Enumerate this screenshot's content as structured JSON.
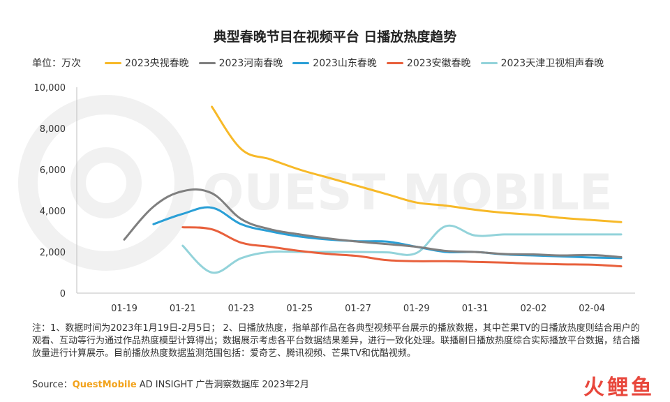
{
  "unit_label": "单位：万次",
  "watermark_text": "QUEST MOBILE",
  "note_text": "注：1、数据时间为2023年1月19日-2月5日；  2、日播放热度，指单部作品在各典型视频平台展示的播放数据，其中芒果TV的日播放热度则结合用户的观看、互动等行为通过作品热度模型计算得出；数据展示考虑各平台数据结果差异，进行一致化处理。联播剧日播放热度综合实际播放平台数据，结合播放量进行计算展示。目前播放热度数据监测范围包括：爱奇艺、腾讯视频、芒果TV和优酷视频。",
  "source_prefix": "Source：",
  "source_brand": "QuestMobile",
  "source_rest": " AD INSIGHT 广告洞察数据库 2023年2月",
  "logo_text": "火鲤鱼",
  "chart_data": {
    "type": "line",
    "title": "典型春晚节目在视频平台 日播放热度趋势",
    "ylabel": "单位：万次",
    "ylim": [
      0,
      10000
    ],
    "yticks": [
      "0",
      "2,000",
      "4,000",
      "6,000",
      "8,000",
      "10,000"
    ],
    "ytick_values": [
      0,
      2000,
      4000,
      6000,
      8000,
      10000
    ],
    "x_tick_labels": [
      "01-19",
      "01-21",
      "01-23",
      "01-25",
      "01-27",
      "01-29",
      "01-31",
      "02-02",
      "02-04"
    ],
    "x_tick_index": [
      0,
      2,
      4,
      6,
      8,
      10,
      12,
      14,
      16
    ],
    "x": [
      "01-19",
      "01-20",
      "01-21",
      "01-22",
      "01-23",
      "01-24",
      "01-25",
      "01-26",
      "01-27",
      "01-28",
      "01-29",
      "01-30",
      "01-31",
      "02-01",
      "02-02",
      "02-03",
      "02-04",
      "02-05"
    ],
    "grid": false,
    "legend_position": "top",
    "series": [
      {
        "name": "2023央视春晚",
        "color": "#f7b928",
        "values": [
          null,
          null,
          null,
          9050,
          7000,
          6500,
          6000,
          5600,
          5200,
          4800,
          4400,
          4250,
          4050,
          3900,
          3800,
          3650,
          3550,
          3450
        ]
      },
      {
        "name": "2023河南春晚",
        "color": "#7f7f7f",
        "values": [
          2600,
          4200,
          4950,
          4850,
          3600,
          3100,
          2850,
          2650,
          2500,
          2380,
          2250,
          2050,
          2000,
          1900,
          1880,
          1830,
          1850,
          1750
        ]
      },
      {
        "name": "2023山东春晚",
        "color": "#2a9fd6",
        "values": [
          null,
          3350,
          3850,
          4150,
          3350,
          3000,
          2750,
          2600,
          2520,
          2500,
          2250,
          2000,
          2000,
          1880,
          1830,
          1780,
          1730,
          1700
        ]
      },
      {
        "name": "2023安徽春晚",
        "color": "#e8603c",
        "values": [
          null,
          null,
          3200,
          3100,
          2450,
          2250,
          2050,
          1900,
          1800,
          1600,
          1550,
          1550,
          1520,
          1480,
          1430,
          1400,
          1380,
          1300
        ]
      },
      {
        "name": "2023天津卫视相声春晚",
        "color": "#93d3da",
        "values": [
          null,
          null,
          2300,
          1000,
          1700,
          2000,
          2000,
          2000,
          2000,
          1980,
          1950,
          3250,
          2800,
          2850,
          2850,
          2850,
          2850,
          2850
        ]
      }
    ]
  }
}
